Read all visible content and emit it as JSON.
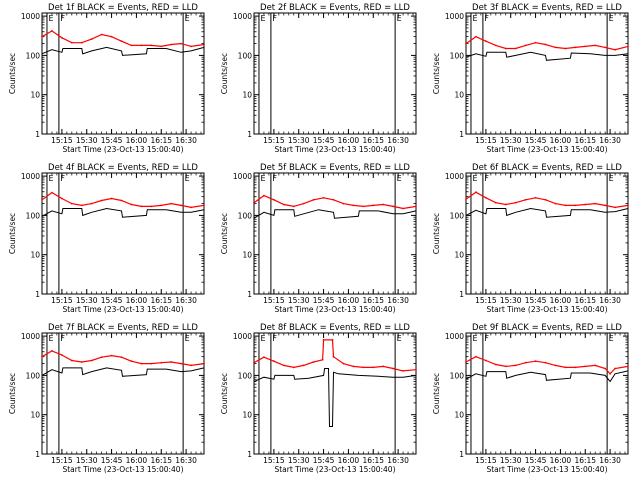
{
  "figure": {
    "background": "#ffffff",
    "axis_color": "#000000",
    "events_color": "#000000",
    "lld_color": "#ff0000"
  },
  "chart_data": [
    {
      "type": "line",
      "title": "Det 1f  BLACK = Events, RED = LLD",
      "ylabel": "Counts/sec",
      "xlabel": "Start Time (23-Oct-13 15:00:40)",
      "yscale": "log",
      "ylim": [
        1,
        1200
      ],
      "xlim": [
        15.05,
        16.68
      ],
      "x_tick_labels": [
        "15:15",
        "15:30",
        "15:45",
        "16:00",
        "16:15",
        "16:30"
      ],
      "y_tick_labels": [
        "1",
        "10",
        "100",
        "1000"
      ],
      "markers": [
        {
          "x": 15.1,
          "label": "E"
        },
        {
          "x": 15.22,
          "label": "F"
        },
        {
          "x": 16.47,
          "label": "E"
        }
      ],
      "has_data": true,
      "series": [
        {
          "name": "Events",
          "color": "#000000",
          "x": [
            15.05,
            15.15,
            15.25,
            15.26,
            15.45,
            15.46,
            15.55,
            15.7,
            15.85,
            15.86,
            16.1,
            16.11,
            16.3,
            16.45,
            16.55,
            16.68
          ],
          "y": [
            110,
            140,
            120,
            150,
            150,
            110,
            130,
            160,
            130,
            100,
            110,
            150,
            150,
            120,
            130,
            160
          ]
        },
        {
          "name": "LLD",
          "color": "#ff0000",
          "x": [
            15.05,
            15.15,
            15.25,
            15.35,
            15.45,
            15.55,
            15.65,
            15.75,
            15.85,
            15.95,
            16.05,
            16.15,
            16.25,
            16.35,
            16.45,
            16.55,
            16.68
          ],
          "y": [
            300,
            420,
            280,
            210,
            210,
            260,
            340,
            300,
            230,
            180,
            180,
            180,
            170,
            190,
            200,
            170,
            190
          ]
        }
      ]
    },
    {
      "type": "line",
      "title": "Det 2f  BLACK = Events, RED = LLD",
      "ylabel": "Counts/sec",
      "xlabel": "Start Time (23-Oct-13 15:00:40)",
      "yscale": "log",
      "ylim": [
        1,
        1200
      ],
      "xlim": [
        15.05,
        16.68
      ],
      "x_tick_labels": [
        "15:15",
        "15:30",
        "15:45",
        "16:00",
        "16:15",
        "16:30"
      ],
      "y_tick_labels": [
        "1",
        "10",
        "100",
        "1000"
      ],
      "markers": [
        {
          "x": 15.1,
          "label": "E"
        },
        {
          "x": 15.22,
          "label": "F"
        },
        {
          "x": 16.47,
          "label": "E"
        }
      ],
      "has_data": false,
      "series": []
    },
    {
      "type": "line",
      "title": "Det 3f  BLACK = Events, RED = LLD",
      "ylabel": "Counts/sec",
      "xlabel": "Start Time (23-Oct-13 15:00:40)",
      "yscale": "log",
      "ylim": [
        1,
        1200
      ],
      "xlim": [
        15.05,
        16.68
      ],
      "x_tick_labels": [
        "15:15",
        "15:30",
        "15:45",
        "16:00",
        "16:15",
        "16:30"
      ],
      "y_tick_labels": [
        "1",
        "10",
        "100",
        "1000"
      ],
      "markers": [
        {
          "x": 15.1,
          "label": "E"
        },
        {
          "x": 15.22,
          "label": "F"
        },
        {
          "x": 16.47,
          "label": "E"
        }
      ],
      "has_data": true,
      "series": [
        {
          "name": "Events",
          "color": "#000000",
          "x": [
            15.05,
            15.15,
            15.25,
            15.26,
            15.45,
            15.46,
            15.55,
            15.7,
            15.85,
            15.86,
            16.1,
            16.11,
            16.3,
            16.45,
            16.55,
            16.68
          ],
          "y": [
            90,
            110,
            95,
            120,
            120,
            90,
            100,
            120,
            100,
            75,
            85,
            115,
            110,
            100,
            100,
            110
          ]
        },
        {
          "name": "LLD",
          "color": "#ff0000",
          "x": [
            15.05,
            15.15,
            15.25,
            15.35,
            15.45,
            15.55,
            15.65,
            15.75,
            15.85,
            15.95,
            16.05,
            16.15,
            16.25,
            16.35,
            16.45,
            16.55,
            16.68
          ],
          "y": [
            200,
            300,
            230,
            180,
            150,
            150,
            180,
            210,
            190,
            160,
            150,
            160,
            170,
            180,
            160,
            140,
            170
          ]
        }
      ]
    },
    {
      "type": "line",
      "title": "Det 4f  BLACK = Events, RED = LLD",
      "ylabel": "Counts/sec",
      "xlabel": "Start Time (23-Oct-13 15:00:40)",
      "yscale": "log",
      "ylim": [
        1,
        1200
      ],
      "xlim": [
        15.05,
        16.68
      ],
      "x_tick_labels": [
        "15:15",
        "15:30",
        "15:45",
        "16:00",
        "16:15",
        "16:30"
      ],
      "y_tick_labels": [
        "1",
        "10",
        "100",
        "1000"
      ],
      "markers": [
        {
          "x": 15.1,
          "label": "E"
        },
        {
          "x": 15.22,
          "label": "F"
        },
        {
          "x": 16.47,
          "label": "E"
        }
      ],
      "has_data": true,
      "series": [
        {
          "name": "Events",
          "color": "#000000",
          "x": [
            15.05,
            15.15,
            15.25,
            15.26,
            15.45,
            15.46,
            15.55,
            15.7,
            15.85,
            15.86,
            16.1,
            16.11,
            16.3,
            16.45,
            16.55,
            16.68
          ],
          "y": [
            95,
            130,
            110,
            150,
            150,
            100,
            120,
            150,
            130,
            90,
            100,
            140,
            140,
            120,
            120,
            140
          ]
        },
        {
          "name": "LLD",
          "color": "#ff0000",
          "x": [
            15.05,
            15.15,
            15.25,
            15.35,
            15.45,
            15.55,
            15.65,
            15.75,
            15.85,
            15.95,
            16.05,
            16.15,
            16.25,
            16.35,
            16.45,
            16.55,
            16.68
          ],
          "y": [
            250,
            380,
            270,
            200,
            180,
            200,
            240,
            270,
            240,
            190,
            170,
            170,
            180,
            200,
            180,
            160,
            180
          ]
        }
      ]
    },
    {
      "type": "line",
      "title": "Det 5f  BLACK = Events, RED = LLD",
      "ylabel": "Counts/sec",
      "xlabel": "Start Time (23-Oct-13 15:00:40)",
      "yscale": "log",
      "ylim": [
        1,
        1200
      ],
      "xlim": [
        15.05,
        16.68
      ],
      "x_tick_labels": [
        "15:15",
        "15:30",
        "15:45",
        "16:00",
        "16:15",
        "16:30"
      ],
      "y_tick_labels": [
        "1",
        "10",
        "100",
        "1000"
      ],
      "markers": [
        {
          "x": 15.1,
          "label": "E"
        },
        {
          "x": 15.22,
          "label": "F"
        },
        {
          "x": 16.47,
          "label": "E"
        }
      ],
      "has_data": true,
      "series": [
        {
          "name": "Events",
          "color": "#000000",
          "x": [
            15.05,
            15.15,
            15.25,
            15.26,
            15.45,
            15.46,
            15.55,
            15.7,
            15.85,
            15.86,
            16.1,
            16.11,
            16.3,
            16.45,
            16.55,
            16.68
          ],
          "y": [
            85,
            120,
            100,
            140,
            140,
            95,
            110,
            140,
            120,
            85,
            95,
            130,
            130,
            110,
            110,
            130
          ]
        },
        {
          "name": "LLD",
          "color": "#ff0000",
          "x": [
            15.05,
            15.15,
            15.25,
            15.35,
            15.45,
            15.55,
            15.65,
            15.75,
            15.85,
            15.95,
            16.05,
            16.15,
            16.25,
            16.35,
            16.45,
            16.55,
            16.68
          ],
          "y": [
            210,
            320,
            250,
            190,
            170,
            200,
            250,
            280,
            250,
            200,
            180,
            170,
            180,
            190,
            170,
            150,
            170
          ]
        }
      ]
    },
    {
      "type": "line",
      "title": "Det 6f  BLACK = Events, RED = LLD",
      "ylabel": "Counts/sec",
      "xlabel": "Start Time (23-Oct-13 15:00:40)",
      "yscale": "log",
      "ylim": [
        1,
        1200
      ],
      "xlim": [
        15.05,
        16.68
      ],
      "x_tick_labels": [
        "15:15",
        "15:30",
        "15:45",
        "16:00",
        "16:15",
        "16:30"
      ],
      "y_tick_labels": [
        "1",
        "10",
        "100",
        "1000"
      ],
      "markers": [
        {
          "x": 15.1,
          "label": "E"
        },
        {
          "x": 15.22,
          "label": "F"
        },
        {
          "x": 16.47,
          "label": "E"
        }
      ],
      "has_data": true,
      "series": [
        {
          "name": "Events",
          "color": "#000000",
          "x": [
            15.05,
            15.15,
            15.25,
            15.26,
            15.45,
            15.46,
            15.55,
            15.7,
            15.85,
            15.86,
            16.1,
            16.11,
            16.3,
            16.45,
            16.55,
            16.68
          ],
          "y": [
            100,
            135,
            110,
            150,
            150,
            100,
            120,
            150,
            130,
            90,
            100,
            140,
            140,
            120,
            125,
            150
          ]
        },
        {
          "name": "LLD",
          "color": "#ff0000",
          "x": [
            15.05,
            15.15,
            15.25,
            15.35,
            15.45,
            15.55,
            15.65,
            15.75,
            15.85,
            15.95,
            16.05,
            16.15,
            16.25,
            16.35,
            16.45,
            16.55,
            16.68
          ],
          "y": [
            260,
            390,
            280,
            210,
            190,
            210,
            250,
            280,
            250,
            200,
            180,
            180,
            190,
            200,
            180,
            160,
            180
          ]
        }
      ]
    },
    {
      "type": "line",
      "title": "Det 7f  BLACK = Events, RED = LLD",
      "ylabel": "Counts/sec",
      "xlabel": "Start Time (23-Oct-13 15:00:40)",
      "yscale": "log",
      "ylim": [
        1,
        1200
      ],
      "xlim": [
        15.05,
        16.68
      ],
      "x_tick_labels": [
        "15:15",
        "15:30",
        "15:45",
        "16:00",
        "16:15",
        "16:30"
      ],
      "y_tick_labels": [
        "1",
        "10",
        "100",
        "1000"
      ],
      "markers": [
        {
          "x": 15.1,
          "label": "E"
        },
        {
          "x": 15.22,
          "label": "F"
        },
        {
          "x": 16.47,
          "label": "E"
        }
      ],
      "has_data": true,
      "series": [
        {
          "name": "Events",
          "color": "#000000",
          "x": [
            15.05,
            15.15,
            15.25,
            15.26,
            15.45,
            15.46,
            15.55,
            15.7,
            15.85,
            15.86,
            16.1,
            16.11,
            16.3,
            16.45,
            16.55,
            16.68
          ],
          "y": [
            100,
            140,
            115,
            155,
            155,
            105,
            125,
            155,
            135,
            95,
            105,
            145,
            145,
            125,
            130,
            155
          ]
        },
        {
          "name": "LLD",
          "color": "#ff0000",
          "x": [
            15.05,
            15.15,
            15.25,
            15.35,
            15.45,
            15.55,
            15.65,
            15.75,
            15.85,
            15.95,
            16.05,
            16.15,
            16.25,
            16.35,
            16.45,
            16.55,
            16.68
          ],
          "y": [
            300,
            420,
            330,
            240,
            220,
            240,
            290,
            320,
            290,
            230,
            200,
            200,
            210,
            220,
            200,
            180,
            200
          ]
        }
      ]
    },
    {
      "type": "line",
      "title": "Det 8f  BLACK = Events, RED = LLD",
      "ylabel": "Counts/sec",
      "xlabel": "Start Time (23-Oct-13 15:00:40)",
      "yscale": "log",
      "ylim": [
        1,
        1200
      ],
      "xlim": [
        15.05,
        16.68
      ],
      "x_tick_labels": [
        "15:15",
        "15:30",
        "15:45",
        "16:00",
        "16:15",
        "16:30"
      ],
      "y_tick_labels": [
        "1",
        "10",
        "100",
        "1000"
      ],
      "markers": [
        {
          "x": 15.1,
          "label": "E"
        },
        {
          "x": 15.22,
          "label": "F"
        },
        {
          "x": 16.47,
          "label": "E"
        }
      ],
      "has_data": true,
      "series": [
        {
          "name": "Events",
          "color": "#000000",
          "x": [
            15.05,
            15.15,
            15.25,
            15.26,
            15.45,
            15.46,
            15.6,
            15.75,
            15.76,
            15.8,
            15.81,
            15.84,
            15.85,
            15.9,
            16.1,
            16.3,
            16.45,
            16.55,
            16.68
          ],
          "y": [
            70,
            90,
            80,
            100,
            100,
            80,
            85,
            100,
            150,
            150,
            5,
            5,
            120,
            110,
            100,
            95,
            90,
            90,
            100
          ]
        },
        {
          "name": "LLD",
          "color": "#ff0000",
          "x": [
            15.05,
            15.15,
            15.25,
            15.35,
            15.45,
            15.55,
            15.65,
            15.74,
            15.75,
            15.84,
            15.85,
            15.95,
            16.05,
            16.15,
            16.25,
            16.35,
            16.45,
            16.55,
            16.68
          ],
          "y": [
            210,
            290,
            230,
            180,
            160,
            180,
            220,
            250,
            800,
            800,
            300,
            200,
            170,
            160,
            160,
            170,
            150,
            130,
            140
          ]
        }
      ]
    },
    {
      "type": "line",
      "title": "Det 9f  BLACK = Events, RED = LLD",
      "ylabel": "Counts/sec",
      "xlabel": "Start Time (23-Oct-13 15:00:40)",
      "yscale": "log",
      "ylim": [
        1,
        1200
      ],
      "xlim": [
        15.05,
        16.68
      ],
      "x_tick_labels": [
        "15:15",
        "15:30",
        "15:45",
        "16:00",
        "16:15",
        "16:30"
      ],
      "y_tick_labels": [
        "1",
        "10",
        "100",
        "1000"
      ],
      "markers": [
        {
          "x": 15.1,
          "label": "E"
        },
        {
          "x": 15.22,
          "label": "F"
        },
        {
          "x": 16.47,
          "label": "E"
        }
      ],
      "has_data": true,
      "series": [
        {
          "name": "Events",
          "color": "#000000",
          "x": [
            15.05,
            15.15,
            15.25,
            15.26,
            15.45,
            15.46,
            15.55,
            15.7,
            15.85,
            15.86,
            16.1,
            16.11,
            16.3,
            16.45,
            16.5,
            16.55,
            16.68
          ],
          "y": [
            80,
            110,
            95,
            125,
            125,
            85,
            100,
            120,
            105,
            75,
            85,
            115,
            115,
            100,
            70,
            110,
            130
          ]
        },
        {
          "name": "LLD",
          "color": "#ff0000",
          "x": [
            15.05,
            15.15,
            15.25,
            15.35,
            15.45,
            15.55,
            15.65,
            15.75,
            15.85,
            15.95,
            16.05,
            16.15,
            16.25,
            16.35,
            16.45,
            16.5,
            16.55,
            16.68
          ],
          "y": [
            220,
            300,
            240,
            190,
            170,
            180,
            210,
            230,
            210,
            180,
            160,
            160,
            170,
            180,
            150,
            110,
            150,
            170
          ]
        }
      ]
    }
  ]
}
